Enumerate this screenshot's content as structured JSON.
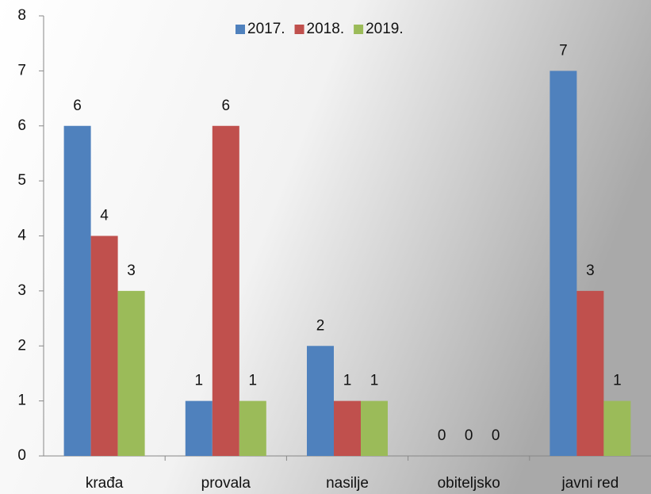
{
  "chart_data": {
    "type": "bar",
    "categories": [
      "krađa",
      "provala",
      "nasilje",
      "obiteljsko",
      "javni red"
    ],
    "series": [
      {
        "name": "2017.",
        "color": "#4f81bd",
        "values": [
          6,
          1,
          2,
          0,
          7
        ]
      },
      {
        "name": "2018.",
        "color": "#c0504d",
        "values": [
          4,
          6,
          1,
          0,
          3
        ]
      },
      {
        "name": "2019.",
        "color": "#9bbb59",
        "values": [
          3,
          1,
          1,
          0,
          1
        ]
      }
    ],
    "ylim": [
      0,
      8
    ],
    "yticks": [
      0,
      1,
      2,
      3,
      4,
      5,
      6,
      7,
      8
    ],
    "grid": false,
    "legend": "top",
    "data_labels": true
  }
}
